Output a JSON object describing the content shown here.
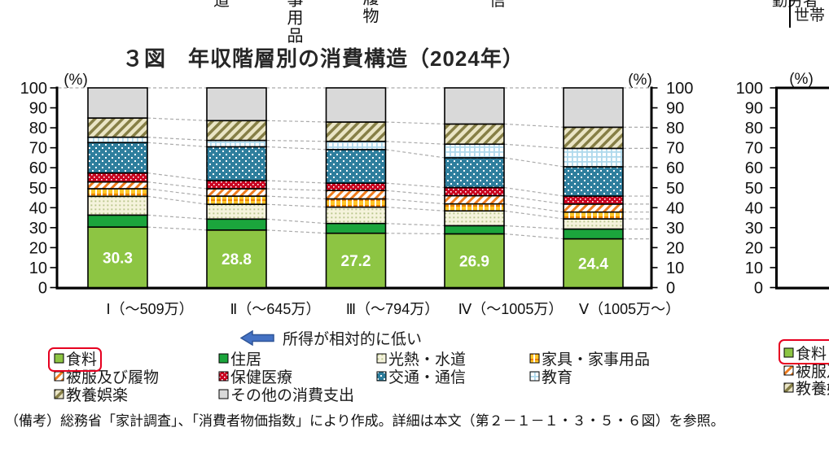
{
  "title": "３図　年収階層別の消費構造（2024年）",
  "axis": {
    "unit_label": "(%)",
    "yticks": [
      0,
      10,
      20,
      30,
      40,
      50,
      60,
      70,
      80,
      90,
      100
    ]
  },
  "chart_data": {
    "type": "bar",
    "stacked": true,
    "title": "３図　年収階層別の消費構造（2024年）",
    "ylabel": "(%)",
    "ylim": [
      0,
      100
    ],
    "yticks": [
      0,
      10,
      20,
      30,
      40,
      50,
      60,
      70,
      80,
      90,
      100
    ],
    "categories": [
      "Ⅰ（～509万）",
      "Ⅱ（～645万）",
      "Ⅲ（～794万）",
      "Ⅳ（～1005万）",
      "Ⅴ（1005万～）"
    ],
    "series": [
      {
        "name": "食料",
        "pattern": "solid-food",
        "color": "#8DC543",
        "labeled": true,
        "values": [
          30.3,
          28.8,
          27.2,
          26.9,
          24.4
        ]
      },
      {
        "name": "住居",
        "pattern": "solid-house",
        "color": "#1BA53C",
        "values": [
          6.0,
          5.5,
          4.9,
          4.1,
          4.9
        ]
      },
      {
        "name": "光熱・水道",
        "pattern": "dots-cream",
        "color": "#F5F3DC",
        "values": [
          9.4,
          7.4,
          8.2,
          7.4,
          5.1
        ]
      },
      {
        "name": "家具・家事用品",
        "pattern": "check-yellow",
        "color": "#FFC527",
        "values": [
          3.8,
          4.1,
          4.1,
          3.5,
          3.4
        ]
      },
      {
        "name": "被服及び履物",
        "pattern": "diag-orange",
        "color": "#EE7B1D",
        "values": [
          3.4,
          3.7,
          4.2,
          4.1,
          4.0
        ]
      },
      {
        "name": "保健医療",
        "pattern": "dots-red",
        "color": "#C9001F",
        "values": [
          4.5,
          4.1,
          3.7,
          4.1,
          4.0
        ]
      },
      {
        "name": "交通・通信",
        "pattern": "dots-teal",
        "color": "#2E7E9D",
        "values": [
          15.2,
          16.9,
          16.8,
          14.9,
          14.7
        ]
      },
      {
        "name": "教育",
        "pattern": "plaid-blue",
        "color": "#AFD9EC",
        "values": [
          2.7,
          3.2,
          4.1,
          6.8,
          9.2
        ]
      },
      {
        "name": "教養娯楽",
        "pattern": "diag-olive",
        "color": "#867F46",
        "values": [
          9.6,
          9.9,
          9.7,
          10.1,
          10.6
        ]
      },
      {
        "name": "その他の消費支出",
        "pattern": "solid-gray",
        "color": "#D9D9D9",
        "values": [
          15.1,
          16.4,
          17.1,
          18.1,
          19.7
        ]
      }
    ],
    "value_labels": {
      "series": "食料",
      "values": [
        "30.3",
        "28.8",
        "27.2",
        "26.9",
        "24.4"
      ]
    },
    "legend_position": "bottom",
    "grid": false
  },
  "annotation": {
    "text": "所得が相対的に低い",
    "arrow_direction": "left",
    "arrow_color": "#4472C4"
  },
  "right_legend": {
    "items": [
      "食料",
      "被服及び履物",
      "教養娯楽"
    ]
  },
  "note": "（備考）総務省「家計調査」、「消費者物価指数」により作成。詳細は本文（第２－１－１・３・５・６図）を参照。",
  "top_fragments": {
    "f1": "道",
    "f2": "事用品",
    "f3": "履物",
    "f4": "信",
    "right_box_top": "勤労者",
    "right_box_label": "世帯"
  },
  "colors": {
    "highlight_box": "#E60020",
    "dashed_connector": "#ABABAB",
    "axis": "#000000",
    "value_label_text": "#FFFFFF"
  }
}
